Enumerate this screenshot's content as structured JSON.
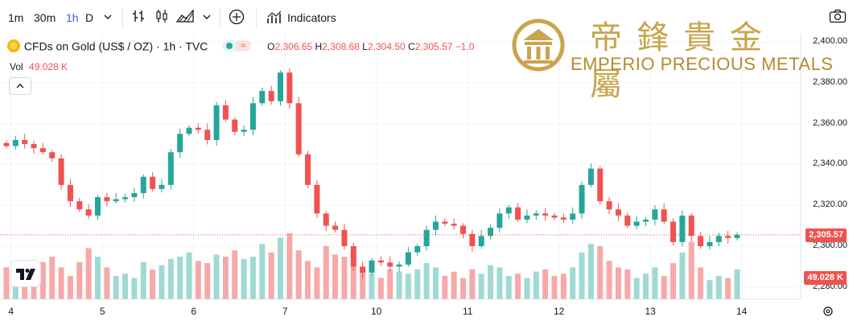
{
  "toolbar": {
    "intervals": [
      "1m",
      "30m",
      "1h",
      "D"
    ],
    "indicators_label": "Indicators"
  },
  "legend": {
    "symbol": "CFDs on Gold (US$ / OZ) · 1h · TVC",
    "o_label": "O",
    "o_value": "2,306.65",
    "h_label": "H",
    "h_value": "2,308.68",
    "l_label": "L",
    "l_value": "2,304.50",
    "c_label": "C",
    "c_value": "2,305.57",
    "chg_value": "−1.0",
    "vol_label": "Vol",
    "vol_value": "49.028 K"
  },
  "logo": {
    "chinese": "帝鋒貴金屬",
    "english": "EMPERIO PRECIOUS METALS"
  },
  "colors": {
    "up": "#26a69a",
    "down": "#ef5350",
    "vol_up": "#9fd9d3",
    "vol_down": "#f6a9a8",
    "price_badge": "#ef5350",
    "gold": "#c9a44c"
  },
  "chart_data": {
    "type": "candlestick",
    "price_axis_labels": [
      "2,400.00",
      "2,380.00",
      "2,360.00",
      "2,340.00",
      "2,320.00",
      "2,300.00",
      "2,280.00"
    ],
    "price_ticks": [
      2400,
      2380,
      2360,
      2340,
      2320,
      2300,
      2280
    ],
    "ylim": [
      2274,
      2404
    ],
    "time_labels": [
      "4",
      "5",
      "6",
      "7",
      "10",
      "11",
      "12",
      "13",
      "14"
    ],
    "time_positions": [
      0.5,
      10.5,
      20.5,
      30.5,
      40.5,
      50.5,
      60.5,
      70.5,
      80.5
    ],
    "last_price": 2305.57,
    "last_price_label": "2,305.57",
    "volume_label": "49.028 K",
    "closes": [
      2349,
      2352,
      2350,
      2348,
      2346,
      2343,
      2330,
      2322,
      2318,
      2315,
      2324,
      2322,
      2323,
      2324,
      2326,
      2334,
      2328,
      2330,
      2346,
      2355,
      2358,
      2357,
      2352,
      2369,
      2362,
      2356,
      2357,
      2370,
      2376,
      2371,
      2385,
      2370,
      2345,
      2330,
      2316,
      2310,
      2308,
      2300,
      2290,
      2287,
      2293,
      2292,
      2290,
      2291,
      2297,
      2300,
      2308,
      2312,
      2311,
      2310,
      2306,
      2300,
      2305,
      2309,
      2316,
      2319,
      2313,
      2315,
      2316,
      2315,
      2314,
      2313,
      2316,
      2330,
      2338,
      2322,
      2318,
      2315,
      2310,
      2312,
      2313,
      2318,
      2312,
      2302,
      2315,
      2305,
      2300,
      2302,
      2305,
      2304,
      2305.57
    ],
    "volumes": [
      30,
      25,
      15,
      28,
      35,
      40,
      30,
      22,
      35,
      48,
      40,
      30,
      22,
      24,
      20,
      35,
      28,
      32,
      38,
      40,
      44,
      36,
      34,
      42,
      40,
      46,
      38,
      40,
      52,
      44,
      58,
      62,
      46,
      36,
      30,
      50,
      42,
      40,
      34,
      28,
      24,
      20,
      28,
      26,
      24,
      28,
      34,
      30,
      22,
      26,
      20,
      28,
      24,
      32,
      30,
      22,
      24,
      20,
      26,
      28,
      22,
      24,
      30,
      44,
      52,
      50,
      36,
      30,
      28,
      20,
      24,
      30,
      22,
      34,
      44,
      54,
      30,
      18,
      22,
      20,
      28
    ]
  }
}
